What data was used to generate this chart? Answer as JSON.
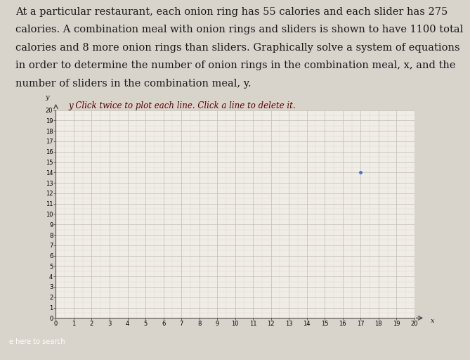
{
  "background_color": "#d8d4cc",
  "plot_bg_color": "#f0ede6",
  "grid_major_color": "#c0bcb4",
  "grid_minor_color": "#d8d5cf",
  "text_color": "#1a1a1a",
  "instruction_text": "y Click twice to plot each line. Click a line to delete it.",
  "instruction_color": "#5a0000",
  "xlabel": "x",
  "ylabel": "y",
  "xlim": [
    0,
    20
  ],
  "ylim": [
    0,
    20
  ],
  "xticks": [
    0,
    1,
    2,
    3,
    4,
    5,
    6,
    7,
    8,
    9,
    10,
    11,
    12,
    13,
    14,
    15,
    16,
    17,
    18,
    19,
    20
  ],
  "yticks": [
    0,
    1,
    2,
    3,
    4,
    5,
    6,
    7,
    8,
    9,
    10,
    11,
    12,
    13,
    14,
    15,
    16,
    17,
    18,
    19,
    20
  ],
  "paragraph_lines": [
    "At a particular restaurant, each onion ring has 55 calories and each slider has 275",
    "calories. A combination meal with onion rings and sliders is shown to have 1100 total",
    "calories and 8 more onion rings than sliders. Graphically solve a system of equations",
    "in order to determine the number of onion rings in the combination meal, x, and the",
    "number of sliders in the combination meal, y."
  ],
  "dot_x": 17,
  "dot_y": 14,
  "dot_color": "#4472c4",
  "axis_color": "#555050",
  "font_size_paragraph": 10.5,
  "font_size_instruction": 8.5,
  "font_size_ticks": 6.0,
  "taskbar_color": "#3a5a9a",
  "taskbar_height": 0.065
}
